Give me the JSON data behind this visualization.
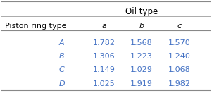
{
  "title": "Oil type",
  "col_header_label": "Piston ring type",
  "col_headers": [
    "a",
    "b",
    "c"
  ],
  "row_labels": [
    "A",
    "B",
    "C",
    "D"
  ],
  "values": [
    [
      "1.782",
      "1.568",
      "1.570"
    ],
    [
      "1.306",
      "1.223",
      "1.240"
    ],
    [
      "1.149",
      "1.029",
      "1.068"
    ],
    [
      "1.025",
      "1.919",
      "1.982"
    ]
  ],
  "text_color": "#4472C4",
  "header_color": "#000000",
  "bg_color": "#ffffff",
  "line_color": "#888888"
}
